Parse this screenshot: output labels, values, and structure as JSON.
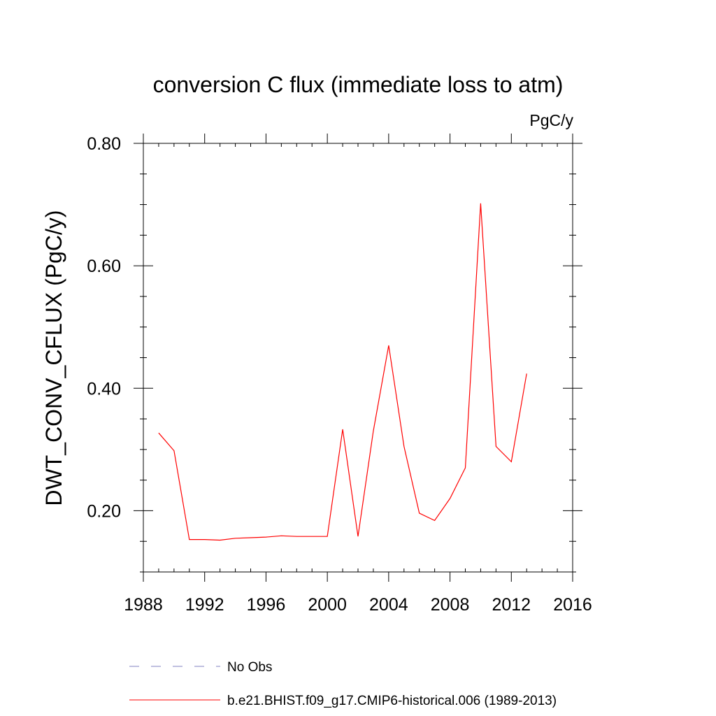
{
  "chart_data": {
    "type": "line",
    "title": "conversion C flux (immediate loss to atm)",
    "units_label": "PgC/y",
    "ylabel": "DWT_CONV_CFLUX  (PgC/y)",
    "xlabel": "",
    "xlim": [
      1988,
      2016
    ],
    "ylim": [
      0.1,
      0.8
    ],
    "x_ticks": [
      1988,
      1992,
      1996,
      2000,
      2004,
      2008,
      2012,
      2016
    ],
    "x_tick_labels": [
      "1988",
      "1992",
      "1996",
      "2000",
      "2004",
      "2008",
      "2012",
      "2016"
    ],
    "y_ticks": [
      0.2,
      0.4,
      0.6,
      0.8
    ],
    "y_tick_labels": [
      "0.20",
      "0.40",
      "0.60",
      "0.80"
    ],
    "grid": false,
    "x": [
      1989,
      1990,
      1991,
      1992,
      1993,
      1994,
      1995,
      1996,
      1997,
      1998,
      1999,
      2000,
      2001,
      2002,
      2003,
      2004,
      2005,
      2006,
      2007,
      2008,
      2009,
      2010,
      2011,
      2012,
      2013
    ],
    "series": [
      {
        "name": "b.e21.BHIST.f09_g17.CMIP6-historical.006 (1989-2013)",
        "color": "#ff0000",
        "values": [
          0.327,
          0.298,
          0.153,
          0.153,
          0.152,
          0.155,
          0.156,
          0.157,
          0.159,
          0.158,
          0.158,
          0.158,
          0.333,
          0.158,
          0.33,
          0.47,
          0.305,
          0.196,
          0.184,
          0.22,
          0.27,
          0.702,
          0.305,
          0.28,
          0.424
        ]
      }
    ],
    "legend": {
      "placement": "bottom-left",
      "entries": [
        {
          "label": "No Obs",
          "color": "#8080c0",
          "style": "dashed"
        },
        {
          "label": "b.e21.BHIST.f09_g17.CMIP6-historical.006 (1989-2013)",
          "color": "#ff0000",
          "style": "solid"
        }
      ]
    }
  }
}
